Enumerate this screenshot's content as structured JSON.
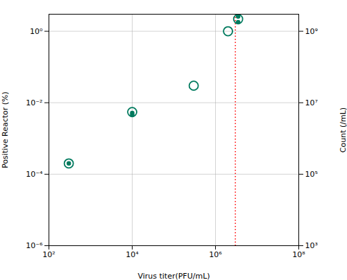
{
  "chart_data": {
    "type": "scatter",
    "xlabel": "Virus titer(PFU/mL)",
    "ylabel": "Positive Reactor (%)",
    "y2label": "Count (/mL)",
    "log": true,
    "grid": true,
    "xlim": [
      100,
      100000000
    ],
    "ylim": [
      1e-06,
      3.0
    ],
    "y2lim": [
      1000,
      3000000000
    ],
    "xticks": [
      {
        "value": 100,
        "label": "10²"
      },
      {
        "value": 10000,
        "label": "10⁴"
      },
      {
        "value": 1000000,
        "label": "10⁶"
      },
      {
        "value": 100000000,
        "label": "10⁸"
      }
    ],
    "yticks": [
      {
        "value": 1e-06,
        "label": "10⁻⁶"
      },
      {
        "value": 0.0001,
        "label": "10⁻⁴"
      },
      {
        "value": 0.01,
        "label": "10⁻²"
      },
      {
        "value": 1,
        "label": "10⁰"
      }
    ],
    "y2ticks": [
      {
        "value": 1000,
        "label": "10³"
      },
      {
        "value": 100000,
        "label": "10⁵"
      },
      {
        "value": 10000000,
        "label": "10⁷"
      },
      {
        "value": 1000000000,
        "label": "10⁹"
      }
    ],
    "series": [
      {
        "marker": "circle_open",
        "color": "#007a5e",
        "x": [
          300,
          10000,
          300000,
          2000000,
          3500000
        ],
        "values": [
          0.0002,
          0.0055,
          0.03,
          1.0,
          2.2
        ]
      },
      {
        "marker": "circle",
        "color": "#007a5e",
        "x": [
          300,
          10000,
          10000,
          3500000,
          3500000
        ],
        "values": [
          0.0002,
          0.0045,
          0.0052,
          1.8,
          2.6
        ]
      }
    ],
    "vlines": [
      {
        "x": 3000000,
        "color": "#ff0000",
        "line_style": "dotted"
      }
    ]
  }
}
